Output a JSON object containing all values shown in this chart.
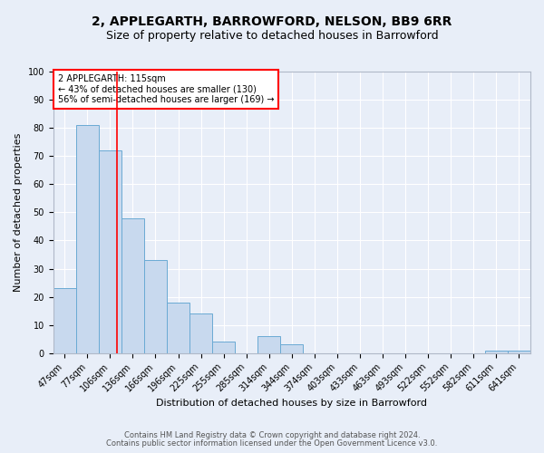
{
  "title": "2, APPLEGARTH, BARROWFORD, NELSON, BB9 6RR",
  "subtitle": "Size of property relative to detached houses in Barrowford",
  "xlabel": "Distribution of detached houses by size in Barrowford",
  "ylabel": "Number of detached properties",
  "categories": [
    "47sqm",
    "77sqm",
    "106sqm",
    "136sqm",
    "166sqm",
    "196sqm",
    "225sqm",
    "255sqm",
    "285sqm",
    "314sqm",
    "344sqm",
    "374sqm",
    "403sqm",
    "433sqm",
    "463sqm",
    "493sqm",
    "522sqm",
    "552sqm",
    "582sqm",
    "611sqm",
    "641sqm"
  ],
  "values": [
    23,
    81,
    72,
    48,
    33,
    18,
    14,
    4,
    0,
    6,
    3,
    0,
    0,
    0,
    0,
    0,
    0,
    0,
    0,
    1,
    1
  ],
  "bar_color": "#c8d9ee",
  "bar_edge_color": "#6aaad4",
  "ylim": [
    0,
    100
  ],
  "annotation_text": "2 APPLEGARTH: 115sqm\n← 43% of detached houses are smaller (130)\n56% of semi-detached houses are larger (169) →",
  "annotation_box_color": "white",
  "annotation_box_edge_color": "red",
  "footer_line1": "Contains HM Land Registry data © Crown copyright and database right 2024.",
  "footer_line2": "Contains public sector information licensed under the Open Government Licence v3.0.",
  "background_color": "#e8eef8",
  "grid_color": "#ffffff",
  "title_fontsize": 10,
  "subtitle_fontsize": 9,
  "ylabel_fontsize": 8,
  "xlabel_fontsize": 8,
  "tick_fontsize": 7,
  "footer_fontsize": 6,
  "annotation_fontsize": 7
}
